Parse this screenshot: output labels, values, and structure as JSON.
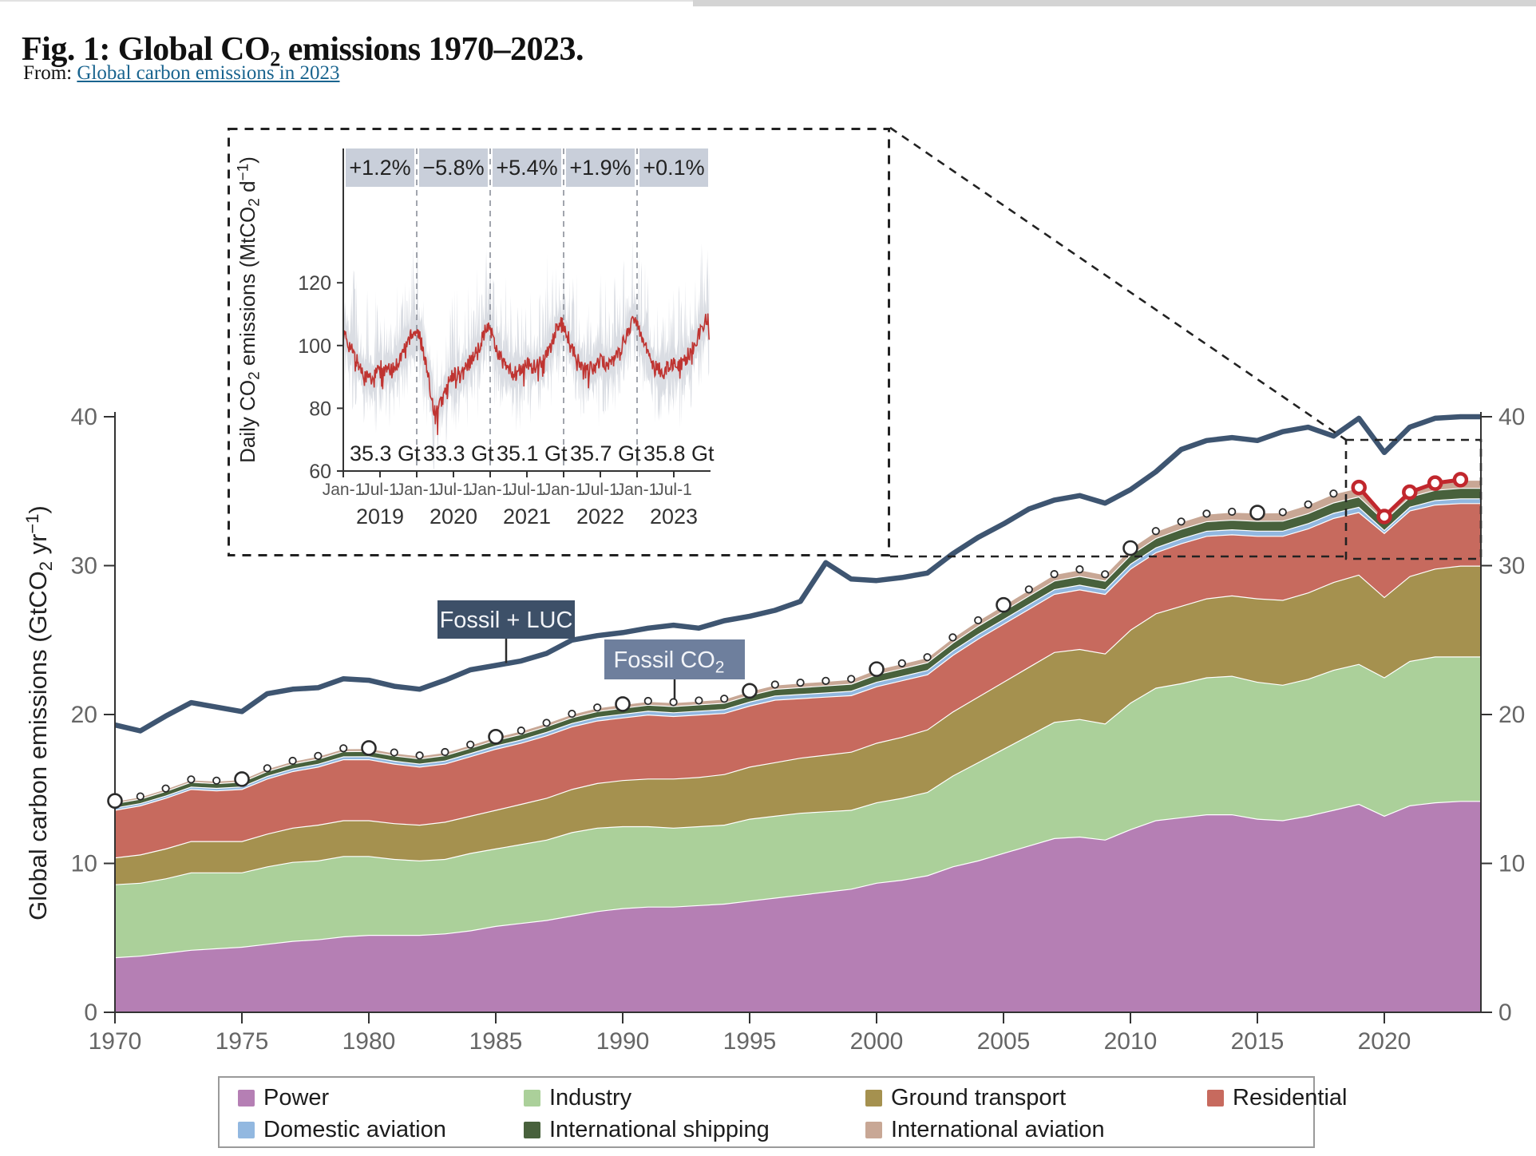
{
  "page": {
    "title_parts": {
      "pre": "Fig. 1: Global CO",
      "sub": "2",
      "post": " emissions 1970–2023."
    },
    "source": {
      "prefix": "From: ",
      "link_text": "Global carbon emissions in 2023"
    }
  },
  "colors": {
    "navy_line": "#3e5571",
    "red": "#c1272d",
    "inset_line": "#bf3431",
    "inset_band": "#dadde3",
    "pct_box_bg": "#c9cfda",
    "axis": "#333333",
    "tick_text": "#666666",
    "white_boundary": "#ffffff",
    "fossil_luc_box": "#3d5068",
    "fossil_co2_box": "#6e7f9d",
    "dashed_callout": "#222222"
  },
  "legend": {
    "items": [
      {
        "label": "Power",
        "color": "#b57fb4"
      },
      {
        "label": "Industry",
        "color": "#abd09a"
      },
      {
        "label": "Ground transport",
        "color": "#a5914f"
      },
      {
        "label": "Residential",
        "color": "#c76a5e"
      },
      {
        "label": "Domestic aviation",
        "color": "#92b8e0"
      },
      {
        "label": "International shipping",
        "color": "#48613c"
      },
      {
        "label": "International aviation",
        "color": "#c8a795"
      }
    ]
  },
  "annotations": {
    "fossil_luc": "Fossil + LUC",
    "fossil_co2_pre": "Fossil CO",
    "fossil_co2_sub": "2"
  },
  "chart_data": [
    {
      "type": "area",
      "stacked": true,
      "title": "",
      "xlabel": "",
      "ylabel": "Global carbon emissions (GtCO2 yr-1)",
      "ylabel_parts": [
        {
          "t": "Global carbon emissions (GtCO"
        },
        {
          "t": "2",
          "s": "sub"
        },
        {
          "t": " yr"
        },
        {
          "t": "−1",
          "s": "sup"
        },
        {
          "t": ")"
        }
      ],
      "ylim": [
        0,
        40
      ],
      "yticks": [
        0,
        10,
        20,
        30,
        40
      ],
      "xticks": [
        1970,
        1975,
        1980,
        1985,
        1990,
        1995,
        2000,
        2005,
        2010,
        2015,
        2020
      ],
      "grid": false,
      "x_years": [
        1970,
        1971,
        1972,
        1973,
        1974,
        1975,
        1976,
        1977,
        1978,
        1979,
        1980,
        1981,
        1982,
        1983,
        1984,
        1985,
        1986,
        1987,
        1988,
        1989,
        1990,
        1991,
        1992,
        1993,
        1994,
        1995,
        1996,
        1997,
        1998,
        1999,
        2000,
        2001,
        2002,
        2003,
        2004,
        2005,
        2006,
        2007,
        2008,
        2009,
        2010,
        2011,
        2012,
        2013,
        2014,
        2015,
        2016,
        2017,
        2018,
        2019,
        2020,
        2021,
        2022,
        2023
      ],
      "series": [
        {
          "name": "Power",
          "color": "#b57fb4",
          "values": [
            3.7,
            3.8,
            4.0,
            4.2,
            4.3,
            4.4,
            4.6,
            4.8,
            4.9,
            5.1,
            5.2,
            5.2,
            5.2,
            5.3,
            5.5,
            5.8,
            6.0,
            6.2,
            6.5,
            6.8,
            7.0,
            7.1,
            7.1,
            7.2,
            7.3,
            7.5,
            7.7,
            7.9,
            8.1,
            8.3,
            8.7,
            8.9,
            9.2,
            9.8,
            10.2,
            10.7,
            11.2,
            11.7,
            11.8,
            11.6,
            12.3,
            12.9,
            13.1,
            13.3,
            13.3,
            13.0,
            12.9,
            13.2,
            13.6,
            14.0,
            13.2,
            13.9,
            14.1,
            14.2
          ]
        },
        {
          "name": "Industry",
          "color": "#abd09a",
          "values": [
            4.9,
            4.9,
            5.0,
            5.2,
            5.1,
            5.0,
            5.2,
            5.3,
            5.3,
            5.4,
            5.3,
            5.1,
            5.0,
            5.0,
            5.2,
            5.2,
            5.3,
            5.4,
            5.6,
            5.6,
            5.5,
            5.4,
            5.3,
            5.3,
            5.3,
            5.5,
            5.5,
            5.5,
            5.4,
            5.3,
            5.4,
            5.5,
            5.6,
            6.1,
            6.6,
            7.0,
            7.4,
            7.8,
            7.9,
            7.8,
            8.5,
            8.9,
            9.0,
            9.2,
            9.3,
            9.2,
            9.1,
            9.2,
            9.4,
            9.4,
            9.3,
            9.7,
            9.8,
            9.7
          ]
        },
        {
          "name": "Ground transport",
          "color": "#a5914f",
          "values": [
            1.8,
            1.9,
            2.0,
            2.1,
            2.1,
            2.1,
            2.2,
            2.3,
            2.4,
            2.4,
            2.4,
            2.4,
            2.4,
            2.5,
            2.5,
            2.6,
            2.7,
            2.8,
            2.9,
            3.0,
            3.1,
            3.2,
            3.3,
            3.3,
            3.4,
            3.5,
            3.6,
            3.7,
            3.8,
            3.9,
            4.0,
            4.1,
            4.2,
            4.3,
            4.4,
            4.5,
            4.6,
            4.7,
            4.7,
            4.7,
            4.9,
            5.0,
            5.2,
            5.3,
            5.4,
            5.6,
            5.7,
            5.8,
            5.9,
            6.0,
            5.4,
            5.7,
            5.9,
            6.1
          ]
        },
        {
          "name": "Residential",
          "color": "#c76a5e",
          "values": [
            3.2,
            3.3,
            3.4,
            3.5,
            3.4,
            3.5,
            3.7,
            3.8,
            3.9,
            4.1,
            4.1,
            4.0,
            3.9,
            3.9,
            4.0,
            4.1,
            4.1,
            4.2,
            4.2,
            4.2,
            4.2,
            4.3,
            4.2,
            4.2,
            4.1,
            4.1,
            4.2,
            4.0,
            3.9,
            3.8,
            3.8,
            3.8,
            3.7,
            3.8,
            3.9,
            3.9,
            3.9,
            3.9,
            4.0,
            4.0,
            4.1,
            4.1,
            4.2,
            4.2,
            4.1,
            4.2,
            4.3,
            4.3,
            4.3,
            4.2,
            4.3,
            4.4,
            4.3,
            4.2
          ]
        },
        {
          "name": "Domestic aviation",
          "color": "#92b8e0",
          "values": [
            0.15,
            0.15,
            0.16,
            0.16,
            0.17,
            0.17,
            0.18,
            0.18,
            0.19,
            0.19,
            0.2,
            0.2,
            0.2,
            0.21,
            0.21,
            0.22,
            0.22,
            0.23,
            0.23,
            0.24,
            0.25,
            0.25,
            0.25,
            0.26,
            0.26,
            0.27,
            0.27,
            0.28,
            0.28,
            0.29,
            0.3,
            0.29,
            0.29,
            0.3,
            0.31,
            0.31,
            0.32,
            0.32,
            0.32,
            0.31,
            0.33,
            0.33,
            0.34,
            0.34,
            0.34,
            0.35,
            0.35,
            0.35,
            0.35,
            0.35,
            0.2,
            0.25,
            0.3,
            0.32
          ]
        },
        {
          "name": "International shipping",
          "color": "#48613c",
          "values": [
            0.3,
            0.3,
            0.31,
            0.32,
            0.32,
            0.32,
            0.33,
            0.33,
            0.34,
            0.35,
            0.35,
            0.35,
            0.35,
            0.36,
            0.36,
            0.37,
            0.37,
            0.38,
            0.38,
            0.39,
            0.4,
            0.41,
            0.42,
            0.42,
            0.43,
            0.44,
            0.45,
            0.46,
            0.47,
            0.48,
            0.5,
            0.51,
            0.52,
            0.53,
            0.55,
            0.56,
            0.57,
            0.58,
            0.59,
            0.58,
            0.6,
            0.62,
            0.63,
            0.64,
            0.65,
            0.66,
            0.67,
            0.68,
            0.69,
            0.7,
            0.65,
            0.68,
            0.69,
            0.7
          ]
        },
        {
          "name": "International aviation",
          "color": "#c8a795",
          "values": [
            0.15,
            0.15,
            0.16,
            0.16,
            0.17,
            0.17,
            0.18,
            0.18,
            0.19,
            0.19,
            0.2,
            0.2,
            0.2,
            0.21,
            0.21,
            0.22,
            0.23,
            0.23,
            0.24,
            0.24,
            0.25,
            0.25,
            0.26,
            0.26,
            0.27,
            0.28,
            0.29,
            0.3,
            0.31,
            0.32,
            0.35,
            0.34,
            0.34,
            0.35,
            0.37,
            0.39,
            0.41,
            0.43,
            0.44,
            0.43,
            0.45,
            0.47,
            0.49,
            0.51,
            0.53,
            0.55,
            0.57,
            0.58,
            0.6,
            0.6,
            0.25,
            0.3,
            0.45,
            0.55
          ]
        }
      ],
      "fossil_plus_luc": {
        "name": "Fossil + LUC",
        "color": "#3e5571",
        "values": [
          19.3,
          18.9,
          19.9,
          20.8,
          20.5,
          20.2,
          21.4,
          21.7,
          21.8,
          22.4,
          22.3,
          21.9,
          21.7,
          22.3,
          23.0,
          23.3,
          23.6,
          24.1,
          25.0,
          25.3,
          25.5,
          25.8,
          26.0,
          25.8,
          26.3,
          26.6,
          27.0,
          27.6,
          30.2,
          29.1,
          29.0,
          29.2,
          29.5,
          30.8,
          31.9,
          32.8,
          33.8,
          34.4,
          34.7,
          34.2,
          35.1,
          36.3,
          37.8,
          38.4,
          38.6,
          38.4,
          39.0,
          39.3,
          38.7,
          39.9,
          37.6,
          39.3,
          39.9,
          40.0
        ]
      },
      "highlight_recent": {
        "years": [
          2019,
          2020,
          2021,
          2022,
          2023
        ],
        "totals_gt": [
          35.3,
          33.3,
          35.1,
          35.7,
          35.8
        ],
        "color": "#c1272d"
      }
    },
    {
      "type": "line",
      "title": "",
      "ylabel": "Daily CO2 emissions (MtCO2 d-1)",
      "ylabel_parts": [
        {
          "t": "Daily CO"
        },
        {
          "t": "2",
          "s": "sub"
        },
        {
          "t": " emissions (MtCO"
        },
        {
          "t": "2",
          "s": "sub"
        },
        {
          "t": " d"
        },
        {
          "t": "−1",
          "s": "sup"
        },
        {
          "t": ")"
        }
      ],
      "ylim": [
        60,
        130
      ],
      "yticks": [
        60,
        80,
        100,
        120
      ],
      "years": [
        2019,
        2020,
        2021,
        2022,
        2023
      ],
      "pct_change": [
        "+1.2%",
        "−5.8%",
        "+5.4%",
        "+1.9%",
        "+0.1%"
      ],
      "annual_total_labels": [
        "35.3 Gt",
        "33.3 Gt",
        "35.1 Gt",
        "35.7 Gt",
        "35.8 Gt"
      ],
      "xtick_labels": [
        "Jan-1",
        "Jul-1"
      ],
      "monthly_mean": [
        [
          104,
          100,
          96,
          92,
          90,
          90,
          93,
          92,
          92,
          95,
          99,
          104
        ],
        [
          105,
          100,
          88,
          78,
          82,
          87,
          91,
          91,
          93,
          96,
          99,
          104
        ],
        [
          106,
          99,
          95,
          92,
          91,
          92,
          94,
          93,
          94,
          97,
          101,
          106
        ],
        [
          107,
          101,
          96,
          93,
          92,
          93,
          95,
          94,
          95,
          98,
          102,
          107
        ],
        [
          108,
          102,
          97,
          93,
          92,
          93,
          95,
          94,
          96,
          99,
          103,
          108
        ]
      ],
      "line_color": "#bf3431",
      "band_color": "#dadde3"
    }
  ]
}
